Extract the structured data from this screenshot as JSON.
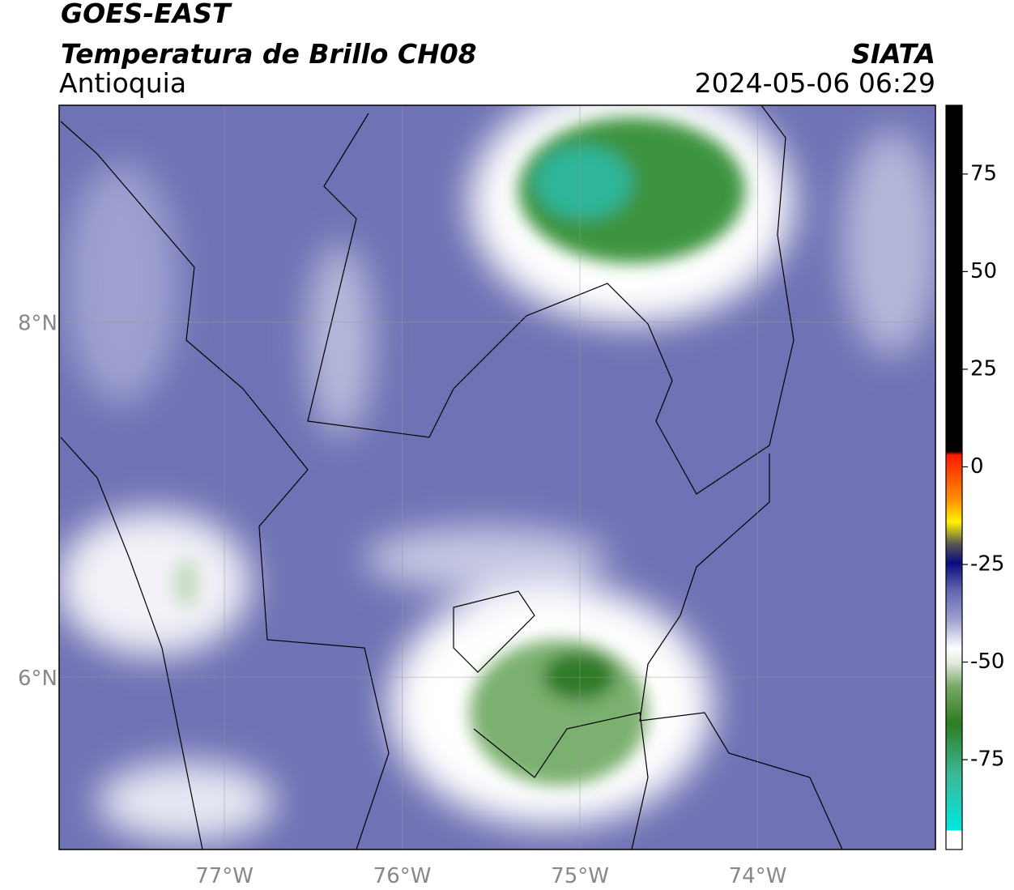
{
  "header": {
    "title": "GOES-EAST",
    "subtitle": "Temperatura de Brillo CH08",
    "region": "Antioquia",
    "source": "SIATA",
    "datetime": "2024-05-06 06:29"
  },
  "map": {
    "xlim": [
      -77.93,
      -73.0
    ],
    "ylim": [
      5.03,
      9.22
    ],
    "xticks": [
      {
        "value": -77,
        "label": "77°W"
      },
      {
        "value": -76,
        "label": "76°W"
      },
      {
        "value": -75,
        "label": "75°W"
      },
      {
        "value": -74,
        "label": "74°W"
      }
    ],
    "yticks": [
      {
        "value": 6,
        "label": "6°N"
      },
      {
        "value": 8,
        "label": "8°N"
      }
    ],
    "grid": true
  },
  "colorbar": {
    "lim": [
      -98,
      92.6
    ],
    "ticks": [
      75,
      50,
      25,
      0,
      -25,
      -50,
      -75
    ]
  }
}
